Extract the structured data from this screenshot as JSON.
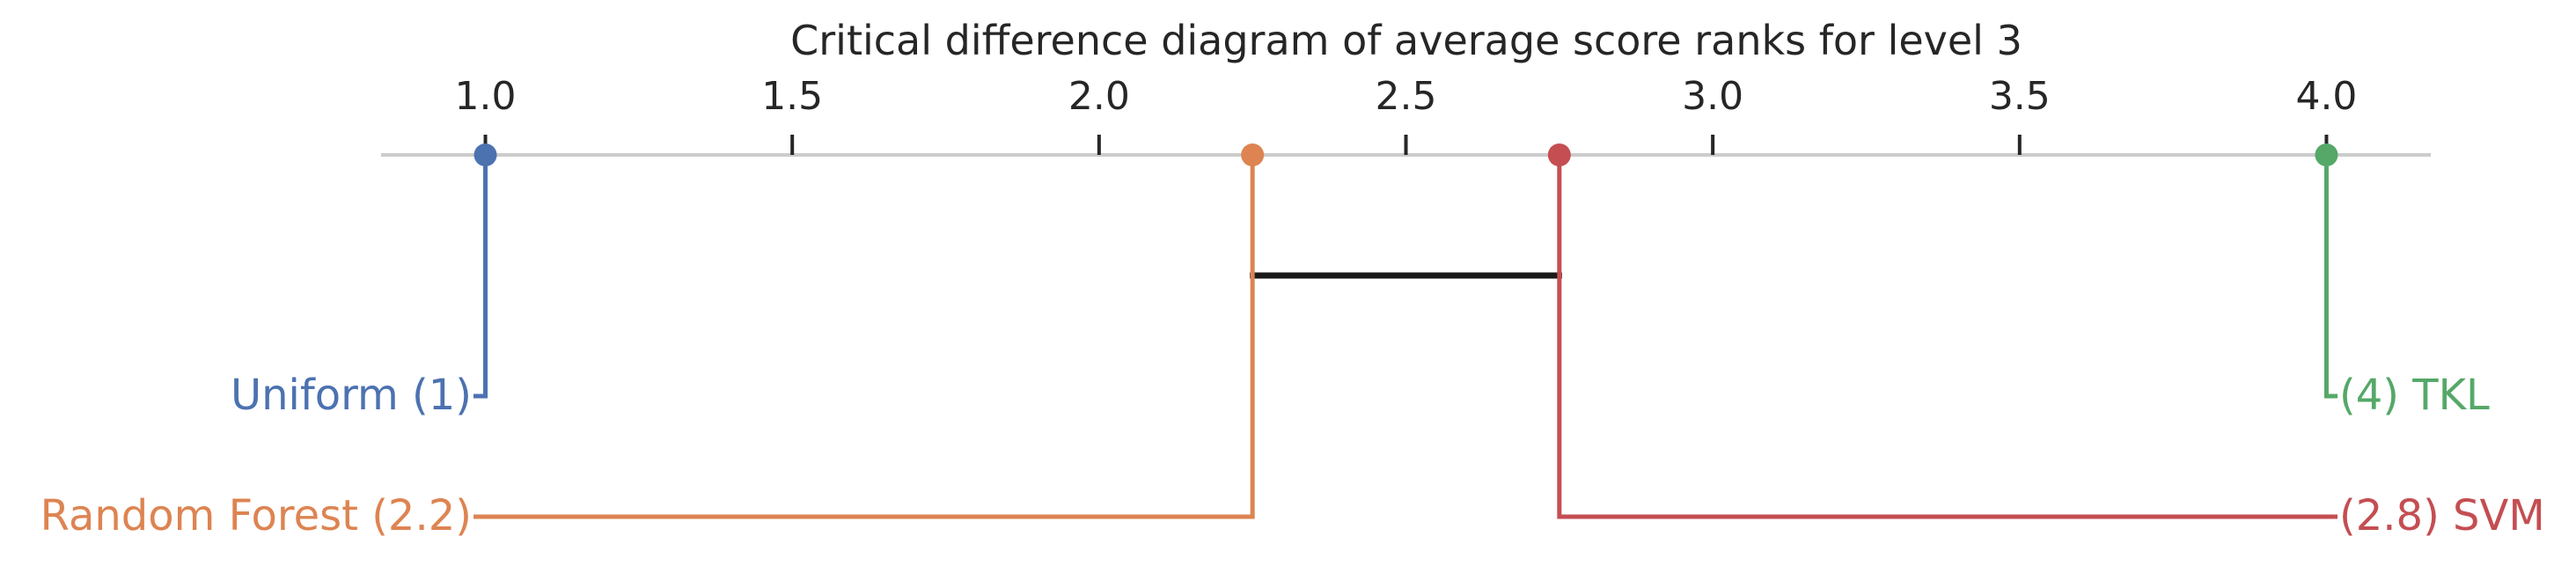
{
  "chart_data": {
    "type": "critical-difference",
    "title": "Critical difference diagram of average score ranks for level 3",
    "axis": {
      "xlim": [
        0.83,
        4.17
      ],
      "ticks": [
        1.0,
        1.5,
        2.0,
        2.5,
        3.0,
        3.5,
        4.0
      ],
      "tick_labels": [
        "1.0",
        "1.5",
        "2.0",
        "2.5",
        "3.0",
        "3.5",
        "4.0"
      ]
    },
    "methods": [
      {
        "name": "Uniform",
        "rank": 1,
        "rank_label": "(1)",
        "label": "Uniform (1)",
        "side": "left",
        "color": "#4c72b0"
      },
      {
        "name": "Random Forest",
        "rank": 2.25,
        "rank_label": "(2.2)",
        "label": "Random Forest (2.2)",
        "side": "left",
        "color": "#dd8452"
      },
      {
        "name": "SVM",
        "rank": 2.75,
        "rank_label": "(2.8)",
        "label": "(2.8) SVM",
        "side": "right",
        "color": "#c44e52"
      },
      {
        "name": "TKL",
        "rank": 4,
        "rank_label": "(4)",
        "label": "(4) TKL",
        "side": "right",
        "color": "#55a868"
      }
    ],
    "cliques": [
      {
        "from": 2.25,
        "to": 2.75
      }
    ],
    "colors": {
      "axis": "#cccccc",
      "tick": "#262626",
      "text": "#262626",
      "clique": "#1a1a1a"
    }
  }
}
